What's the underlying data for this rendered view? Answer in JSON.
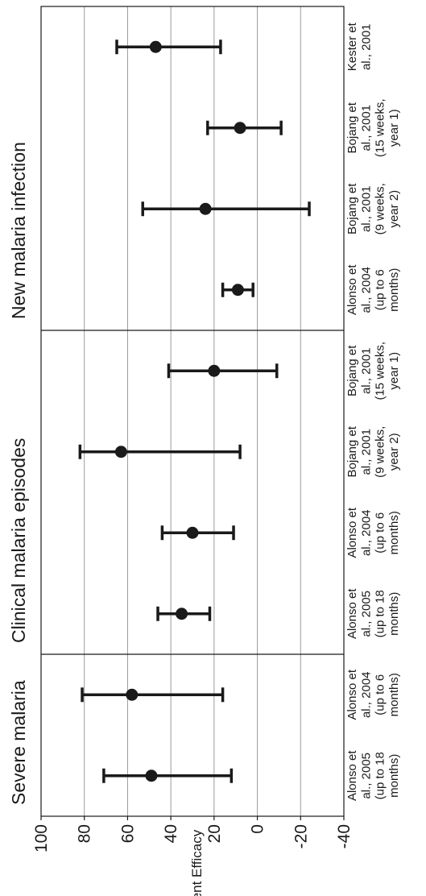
{
  "chart_data": {
    "type": "scatter",
    "orientation": "rotated-90-ccw",
    "ylabel": "Percent Efficacy",
    "ylim": [
      -40,
      100
    ],
    "yticks": [
      "100",
      "80",
      "60",
      "40",
      "20",
      "0",
      "-20",
      "-40"
    ],
    "grid": true,
    "point_color": "#1a1a1a",
    "panels": [
      {
        "title": "New malaria infection",
        "studies": [
          {
            "label": [
              "Kester et",
              "al., 2001"
            ],
            "estimate": 47,
            "lower": 17,
            "upper": 65
          },
          {
            "label": [
              "Bojang et",
              "al., 2001",
              "(15 weeks,",
              "year 1)"
            ],
            "estimate": 8,
            "lower": -11,
            "upper": 23
          },
          {
            "label": [
              "Bojang et",
              "al., 2001",
              "(9 weeks,",
              "year 2)"
            ],
            "estimate": 24,
            "lower": -24,
            "upper": 53
          },
          {
            "label": [
              "Alonso et",
              "al., 2004",
              "(up to 6",
              "months)"
            ],
            "estimate": 9,
            "lower": 2,
            "upper": 16
          }
        ]
      },
      {
        "title": "Clinical malaria episodes",
        "studies": [
          {
            "label": [
              "Bojang et",
              "al., 2001",
              "(15 weeks,",
              "year 1)"
            ],
            "estimate": 20,
            "lower": -9,
            "upper": 41
          },
          {
            "label": [
              "Bojang et",
              "al., 2001",
              "(9 weeks,",
              "year 2)"
            ],
            "estimate": 63,
            "lower": 8,
            "upper": 82
          },
          {
            "label": [
              "Alonso et",
              "al., 2004",
              "(up to 6",
              "months)"
            ],
            "estimate": 30,
            "lower": 11,
            "upper": 44
          },
          {
            "label": [
              "Alonso et",
              "al., 2005",
              "(up to 18",
              "months)"
            ],
            "estimate": 35,
            "lower": 22,
            "upper": 46
          }
        ]
      },
      {
        "title": "Severe malaria",
        "studies": [
          {
            "label": [
              "Alonso et",
              "al., 2004",
              "(up to 6",
              "months)"
            ],
            "estimate": 58,
            "lower": 16,
            "upper": 81
          },
          {
            "label": [
              "Alonso et",
              "al., 2005",
              "(up to 18",
              "months)"
            ],
            "estimate": 49,
            "lower": 12,
            "upper": 71
          }
        ]
      }
    ]
  }
}
